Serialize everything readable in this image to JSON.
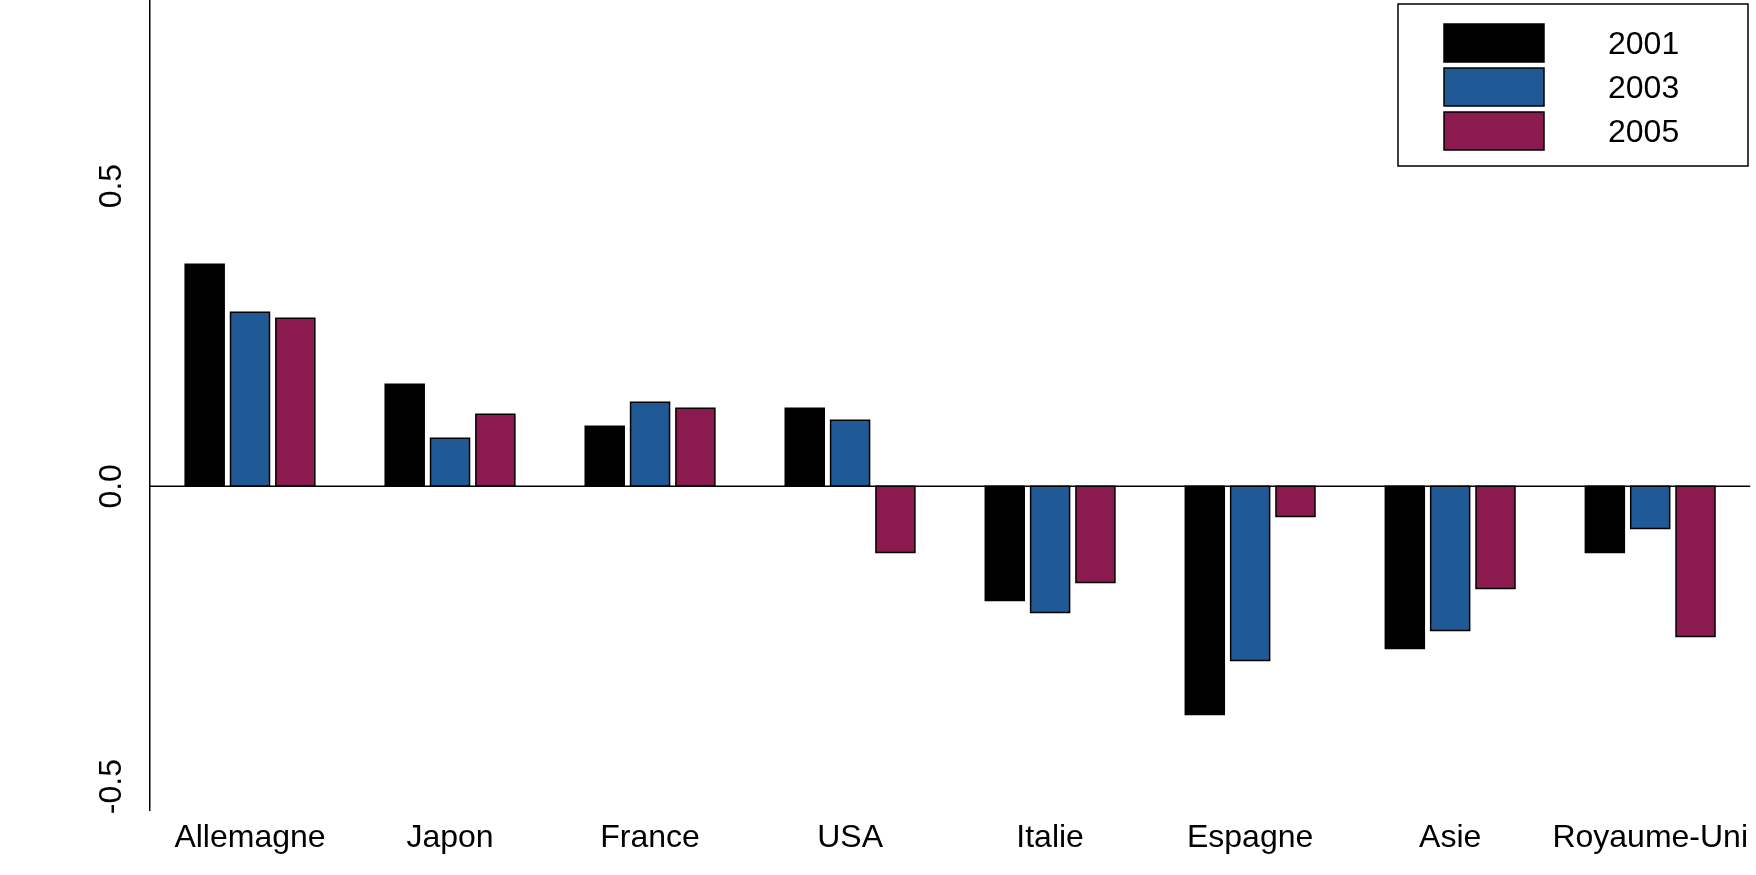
{
  "chart_data": {
    "type": "bar",
    "categories": [
      "Allemagne",
      "Japon",
      "France",
      "USA",
      "Italie",
      "Espagne",
      "Asie",
      "Royaume-Uni"
    ],
    "series": [
      {
        "name": "2001",
        "color": "#000000",
        "values": [
          0.37,
          0.17,
          0.1,
          0.13,
          -0.19,
          -0.38,
          -0.27,
          -0.11
        ]
      },
      {
        "name": "2003",
        "color": "#1f5a96",
        "values": [
          0.29,
          0.08,
          0.14,
          0.11,
          -0.21,
          -0.29,
          -0.24,
          -0.07
        ]
      },
      {
        "name": "2005",
        "color": "#8b1a4f",
        "values": [
          0.28,
          0.12,
          0.13,
          -0.11,
          -0.16,
          -0.05,
          -0.17,
          -0.25
        ]
      }
    ],
    "ylim": [
      -0.54,
      0.81
    ],
    "yticks": [
      {
        "value": -0.5,
        "label": "-0.5"
      },
      {
        "value": 0,
        "label": "0.0"
      },
      {
        "value": 0.5,
        "label": "0.5"
      }
    ],
    "ref_lines": [
      {
        "axis": "y",
        "value": 0,
        "color": "#000000"
      }
    ],
    "grid": false,
    "legend": "top right"
  }
}
